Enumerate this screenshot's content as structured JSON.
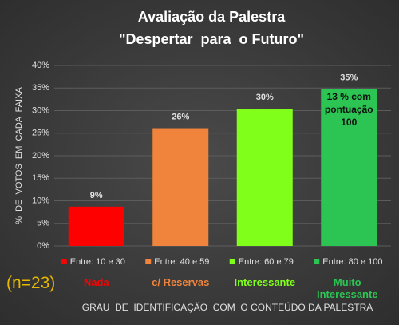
{
  "chart_data": {
    "type": "bar",
    "title": "Avaliação  da Palestra",
    "subtitle": "\"Despertar  para  o Futuro\"",
    "y_label": "%  DE  VOTOS  EM  CADA  FAIXA",
    "x_label": "GRAU  DE  IDENTIFICAÇÃO  COM  O CONTEÚDO DA PALESTRA",
    "categories": [
      "Nada",
      "c/ Reservas",
      "Interessante",
      "Muito Interessante"
    ],
    "values": [
      8.7,
      26.1,
      30.4,
      34.8
    ],
    "value_labels": [
      "9%",
      "26%",
      "30%",
      "35%"
    ],
    "colors": [
      "#ff0000",
      "#f0843c",
      "#80ff1a",
      "#2cc452"
    ],
    "legend": [
      "Entre: 10 e 30",
      "Entre: 40 e 59",
      "Entre: 60 e 79",
      "Entre: 80 e 100"
    ],
    "ylim": [
      0,
      40
    ],
    "yticks": [
      {
        "value": 0,
        "label": "0%"
      },
      {
        "value": 5,
        "label": "5%"
      },
      {
        "value": 10,
        "label": "10%"
      },
      {
        "value": 15,
        "label": "15%"
      },
      {
        "value": 20,
        "label": "20%"
      },
      {
        "value": 25,
        "label": "25%"
      },
      {
        "value": 30,
        "label": "30%"
      },
      {
        "value": 35,
        "label": "35%"
      },
      {
        "value": 40,
        "label": "40%"
      }
    ],
    "grid": true,
    "annotations": [
      "(n=23)",
      "13 % com pontuação 100"
    ]
  }
}
